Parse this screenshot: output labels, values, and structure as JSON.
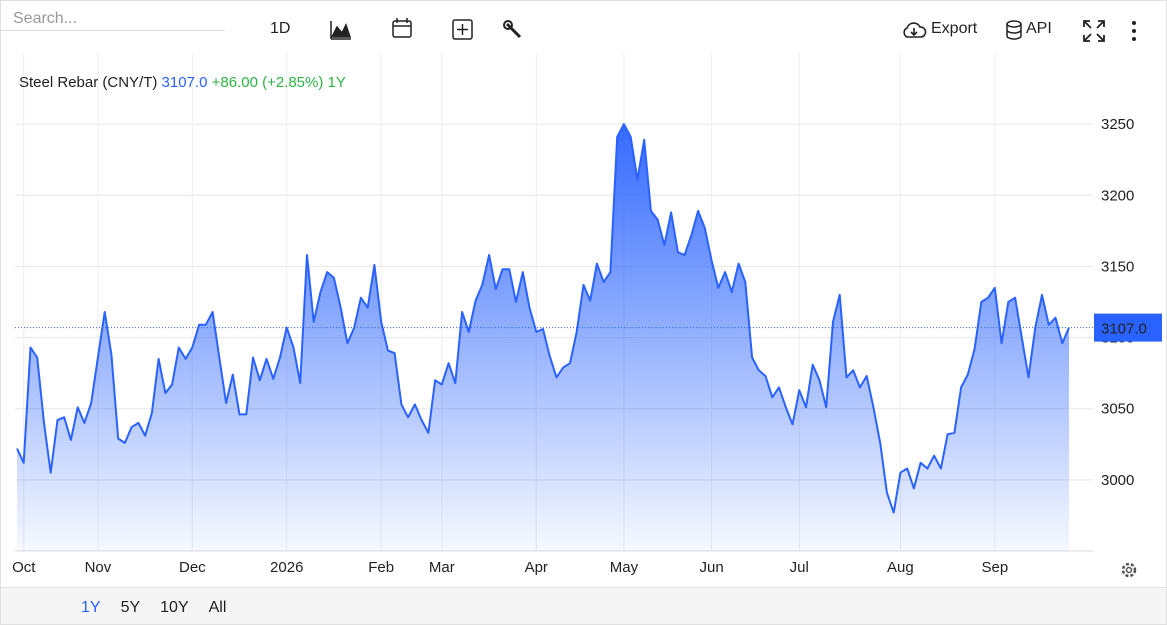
{
  "toolbar": {
    "search_placeholder": "Search...",
    "interval": "1D",
    "export": "Export",
    "api": "API"
  },
  "ranges": [
    "1Y",
    "5Y",
    "10Y",
    "All"
  ],
  "chart_data": {
    "type": "area",
    "title": "Steel Rebar (CNY/T)",
    "price": "3107.0",
    "change": "+86.00 (+2.85%)",
    "period": "1Y",
    "color": "#2962ff",
    "change_color": "#2fb344",
    "last": {
      "value": 3107,
      "label": "3107.0"
    },
    "categories": [
      null,
      "Oct",
      null,
      null,
      null,
      null,
      null,
      null,
      null,
      null,
      null,
      null,
      "Nov",
      null,
      null,
      null,
      null,
      null,
      null,
      null,
      null,
      null,
      null,
      null,
      null,
      null,
      "Dec",
      null,
      null,
      null,
      null,
      null,
      null,
      null,
      null,
      null,
      null,
      null,
      null,
      null,
      "2026",
      null,
      null,
      null,
      null,
      null,
      null,
      null,
      null,
      null,
      null,
      null,
      null,
      null,
      "Feb",
      null,
      null,
      null,
      null,
      null,
      null,
      null,
      null,
      "Mar",
      null,
      null,
      null,
      null,
      null,
      null,
      null,
      null,
      null,
      null,
      null,
      null,
      null,
      "Apr",
      null,
      null,
      null,
      null,
      null,
      null,
      null,
      null,
      null,
      null,
      null,
      null,
      "May",
      null,
      null,
      null,
      null,
      null,
      null,
      null,
      null,
      null,
      null,
      null,
      null,
      "Jun",
      null,
      null,
      null,
      null,
      null,
      null,
      null,
      null,
      null,
      null,
      null,
      null,
      "Jul",
      null,
      null,
      null,
      null,
      null,
      null,
      null,
      null,
      null,
      null,
      null,
      null,
      null,
      null,
      "Aug",
      null,
      null,
      null,
      null,
      null,
      null,
      null,
      null,
      null,
      null,
      null,
      null,
      null,
      "Sep",
      null,
      null,
      null,
      null,
      null,
      null,
      null,
      null,
      null,
      null,
      null
    ],
    "values": [
      3022,
      3012,
      3093,
      3086,
      3040,
      3005,
      3042,
      3044,
      3028,
      3051,
      3040,
      3054,
      3086,
      3118,
      3088,
      3029,
      3026,
      3037,
      3040,
      3031,
      3047,
      3085,
      3061,
      3067,
      3093,
      3085,
      3093,
      3109,
      3109,
      3118,
      3086,
      3054,
      3074,
      3046,
      3046,
      3086,
      3070,
      3085,
      3071,
      3086,
      3107,
      3093,
      3068,
      3158,
      3111,
      3132,
      3146,
      3142,
      3121,
      3096,
      3107,
      3128,
      3121,
      3151,
      3111,
      3091,
      3089,
      3053,
      3044,
      3053,
      3042,
      3033,
      3070,
      3067,
      3082,
      3068,
      3118,
      3104,
      3126,
      3137,
      3158,
      3134,
      3148,
      3148,
      3125,
      3146,
      3121,
      3104,
      3106,
      3087,
      3072,
      3079,
      3082,
      3104,
      3137,
      3126,
      3152,
      3139,
      3146,
      3241,
      3250,
      3241,
      3211,
      3239,
      3189,
      3183,
      3165,
      3188,
      3160,
      3158,
      3172,
      3189,
      3177,
      3154,
      3135,
      3146,
      3132,
      3152,
      3139,
      3086,
      3077,
      3073,
      3058,
      3065,
      3051,
      3039,
      3063,
      3051,
      3081,
      3070,
      3051,
      3111,
      3130,
      3072,
      3077,
      3065,
      3073,
      3051,
      3026,
      2991,
      2977,
      3005,
      3008,
      2994,
      3012,
      3008,
      3017,
      3008,
      3032,
      3033,
      3065,
      3074,
      3092,
      3125,
      3128,
      3135,
      3096,
      3125,
      3128,
      3100,
      3072,
      3107,
      3130,
      3109,
      3114,
      3096,
      3107
    ],
    "ylim": [
      2950,
      3300
    ],
    "yticks": [
      3000,
      3050,
      3100,
      3150,
      3200,
      3250
    ],
    "grid": true
  }
}
